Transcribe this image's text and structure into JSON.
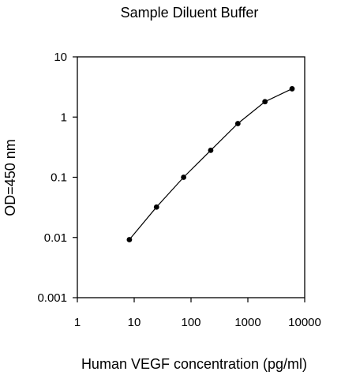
{
  "chart_data": {
    "type": "line",
    "title": "Sample Diluent Buffer",
    "xlabel": "Human VEGF concentration (pg/ml)",
    "ylabel": "OD=450 nm",
    "x_scale": "log",
    "y_scale": "log",
    "xlim": [
      1,
      10000
    ],
    "ylim": [
      0.001,
      10
    ],
    "x_ticks": [
      1,
      10,
      100,
      1000,
      10000
    ],
    "x_tick_labels": [
      "1",
      "10",
      "100",
      "1000",
      "10000"
    ],
    "y_ticks": [
      0.001,
      0.01,
      0.1,
      1,
      10
    ],
    "y_tick_labels": [
      "0.001",
      "0.01",
      "0.1",
      "1",
      "10"
    ],
    "grid": false,
    "legend": "none",
    "series": [
      {
        "x": [
          8.23,
          24.7,
          74.1,
          222,
          667,
          2000,
          6000
        ],
        "y": [
          0.0092,
          0.032,
          0.1,
          0.28,
          0.78,
          1.8,
          2.95
        ],
        "color": "#000000",
        "marker": "circle"
      }
    ]
  }
}
